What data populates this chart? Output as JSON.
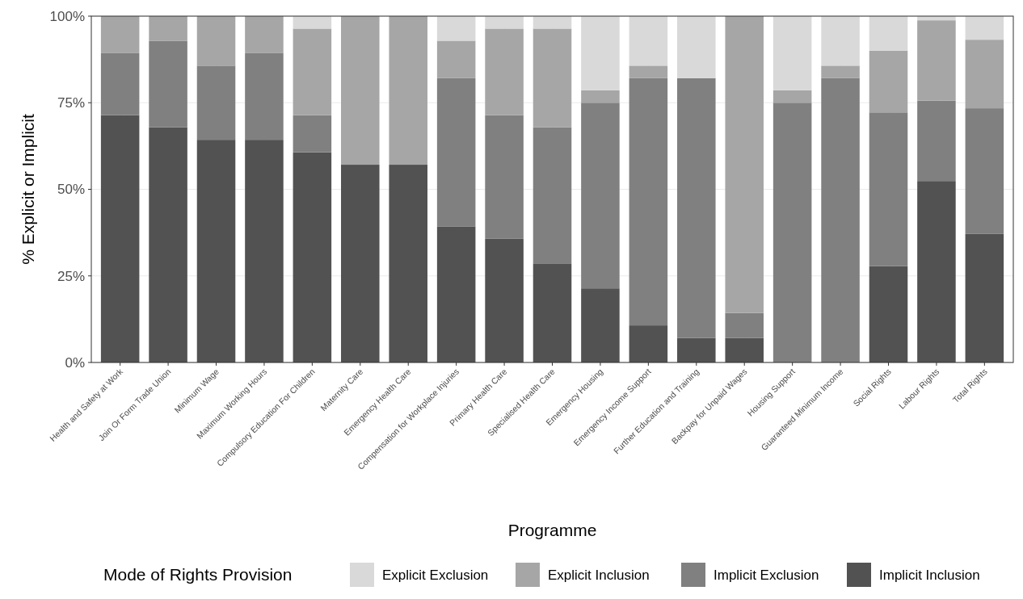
{
  "chart_data": {
    "type": "bar",
    "stacked": true,
    "xlabel": "Programme",
    "ylabel": "% Explicit or Implicit",
    "legend_title": "Mode of Rights Provision",
    "legend": "bottom",
    "grid": true,
    "categories": [
      "Health and Safety at Work",
      "Join Or Form Trade Union",
      "Minimum Wage",
      "Maximum Working Hours",
      "Compulsory Education For Children",
      "Maternity Care",
      "Emergency Health Care",
      "Compensation for Workplace Injuries",
      "Primary Health Care",
      "Specialised Health Care",
      "Emergency Housing",
      "Emergency Income Support",
      "Further Education and Training",
      "Backpay for Unpaid Wages",
      "Housing Support",
      "Guaranteed Minimum Income",
      "Social Rights",
      "Labour Rights",
      "Total Rights"
    ],
    "ylim": [
      0,
      100
    ],
    "yticks": [
      {
        "value": 0,
        "label": "0%"
      },
      {
        "value": 25,
        "label": "25%"
      },
      {
        "value": 50,
        "label": "50%"
      },
      {
        "value": 75,
        "label": "75%"
      },
      {
        "value": 100,
        "label": "100%"
      }
    ],
    "series": [
      {
        "name": "Implicit Inclusion",
        "color": "#525252",
        "values": [
          71.4,
          67.9,
          64.3,
          64.3,
          60.7,
          57.1,
          57.1,
          39.3,
          35.7,
          28.6,
          21.4,
          10.7,
          7.1,
          7.1,
          0,
          0,
          27.8,
          52.4,
          37.1
        ]
      },
      {
        "name": "Implicit Exclusion",
        "color": "#808080",
        "values": [
          17.9,
          25.0,
          21.4,
          25.0,
          10.7,
          0,
          0,
          42.8,
          35.7,
          39.3,
          53.6,
          71.4,
          75.0,
          7.2,
          75.0,
          82.1,
          44.4,
          23.2,
          36.3
        ]
      },
      {
        "name": "Explicit Inclusion",
        "color": "#a6a6a6",
        "values": [
          10.7,
          7.1,
          14.3,
          10.7,
          25.0,
          42.9,
          42.9,
          10.8,
          25.0,
          28.5,
          3.6,
          3.6,
          0,
          85.7,
          3.6,
          3.6,
          17.8,
          23.2,
          19.8
        ]
      },
      {
        "name": "Explicit Exclusion",
        "color": "#d9d9d9",
        "values": [
          0,
          0,
          0,
          0,
          3.6,
          0,
          0,
          7.1,
          3.6,
          3.6,
          21.4,
          14.3,
          17.9,
          0,
          21.4,
          14.3,
          10.0,
          1.2,
          6.8
        ]
      }
    ]
  }
}
